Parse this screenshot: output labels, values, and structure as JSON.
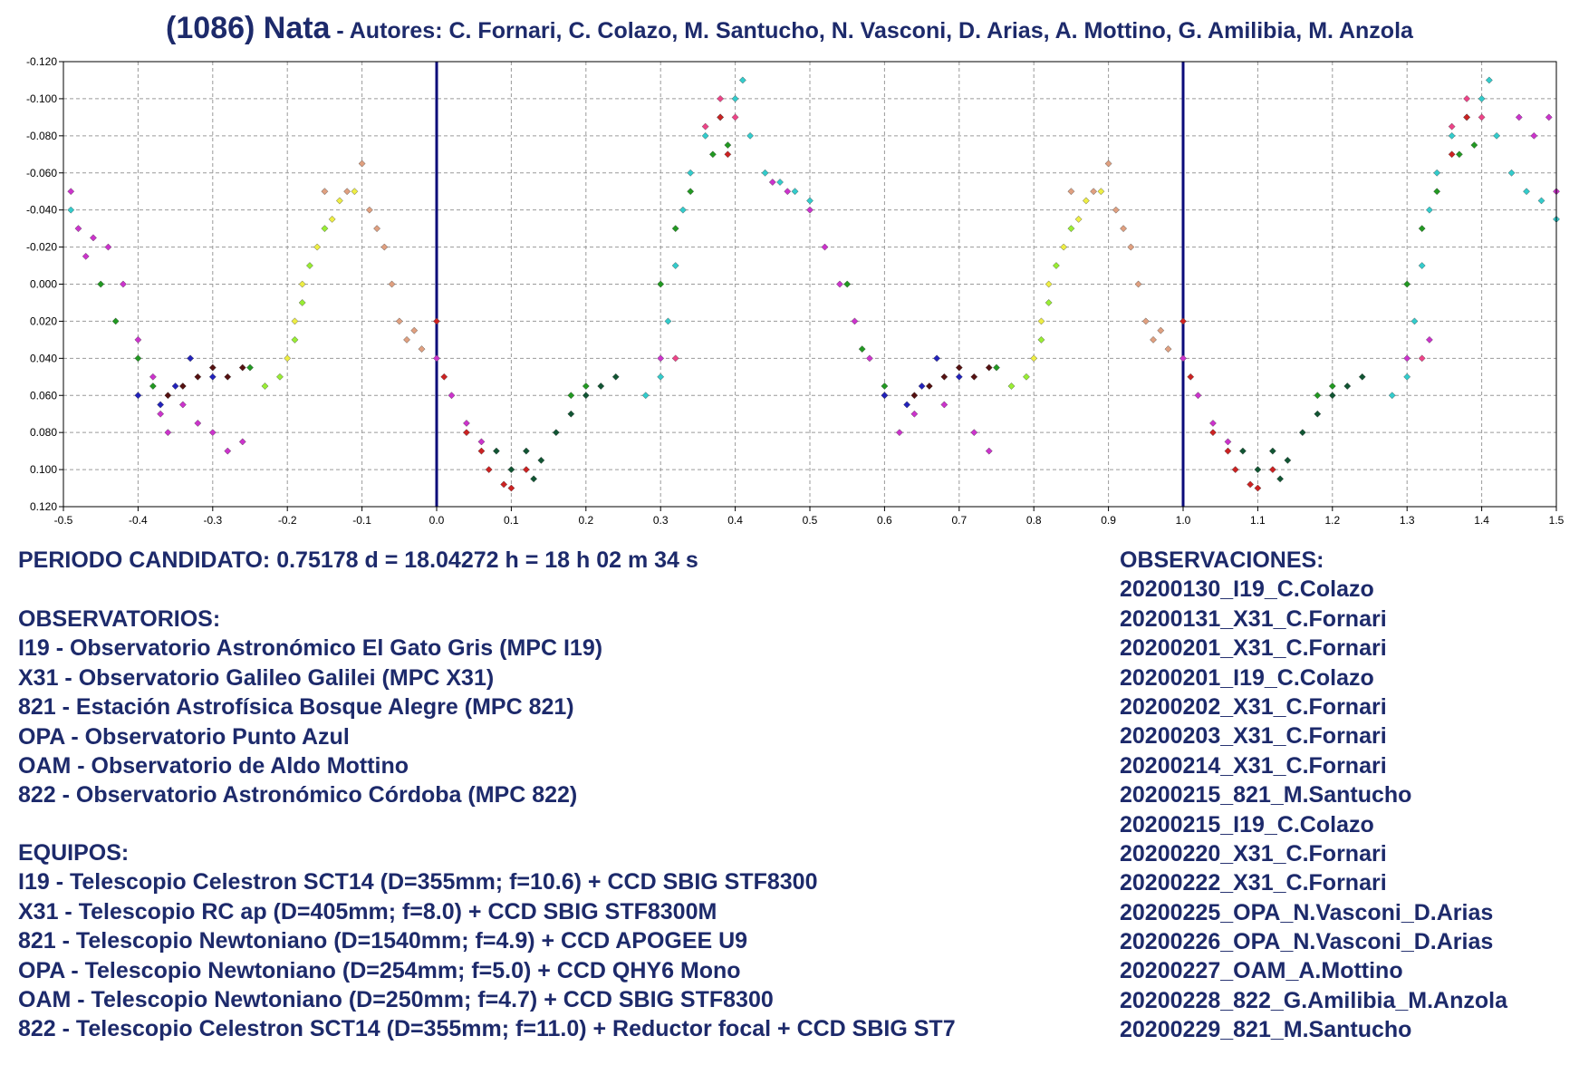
{
  "header": {
    "title": "(1086) Nata",
    "authors": " - Autores: C. Fornari, C. Colazo, M. Santucho, N. Vasconi, D. Arias, A. Mottino, G. Amilibia, M. Anzola"
  },
  "colors": {
    "title_text": "#1d2a6b",
    "zero_line": "#0b0b7a",
    "grid": "#9a9a9a"
  },
  "chart_data": {
    "type": "scatter",
    "title": "",
    "xlabel": "",
    "ylabel": "",
    "xlim": [
      -0.5,
      1.5
    ],
    "ylim": [
      -0.12,
      0.12
    ],
    "y_inverted": true,
    "grid": true,
    "x_ticks": [
      "-0.5",
      "-0.4",
      "-0.3",
      "-0.2",
      "-0.1",
      "0.0",
      "0.1",
      "0.2",
      "0.3",
      "0.4",
      "0.5",
      "0.6",
      "0.7",
      "0.8",
      "0.9",
      "1.0",
      "1.1",
      "1.2",
      "1.3",
      "1.4",
      "1.5"
    ],
    "y_ticks": [
      "-0.120",
      "-0.100",
      "-0.080",
      "-0.060",
      "-0.040",
      "-0.020",
      "0.000",
      "0.020",
      "0.040",
      "0.060",
      "0.080",
      "0.100",
      "0.120"
    ],
    "phase_markers": [
      0.0,
      1.0
    ],
    "series": [
      {
        "color": "#cc33cc",
        "points": [
          [
            -0.49,
            -0.05
          ],
          [
            -0.48,
            -0.03
          ],
          [
            -0.47,
            -0.015
          ],
          [
            -0.46,
            -0.025
          ],
          [
            -0.44,
            -0.02
          ],
          [
            -0.42,
            0.0
          ],
          [
            -0.4,
            0.03
          ],
          [
            -0.38,
            0.05
          ],
          [
            -0.37,
            0.07
          ],
          [
            -0.36,
            0.08
          ],
          [
            -0.34,
            0.065
          ],
          [
            -0.32,
            0.075
          ],
          [
            -0.3,
            0.08
          ],
          [
            -0.28,
            0.09
          ],
          [
            -0.26,
            0.085
          ],
          [
            0.0,
            0.04
          ],
          [
            0.02,
            0.06
          ],
          [
            0.04,
            0.075
          ],
          [
            0.06,
            0.085
          ],
          [
            0.3,
            0.04
          ],
          [
            0.45,
            -0.055
          ],
          [
            0.47,
            -0.05
          ],
          [
            0.5,
            -0.04
          ],
          [
            0.52,
            -0.02
          ],
          [
            0.54,
            0.0
          ],
          [
            0.56,
            0.02
          ],
          [
            0.58,
            0.04
          ],
          [
            0.6,
            0.06
          ],
          [
            0.62,
            0.08
          ],
          [
            0.64,
            0.07
          ],
          [
            0.68,
            0.065
          ],
          [
            0.72,
            0.08
          ],
          [
            0.74,
            0.09
          ],
          [
            1.0,
            0.04
          ],
          [
            1.02,
            0.06
          ],
          [
            1.04,
            0.075
          ],
          [
            1.06,
            0.085
          ],
          [
            1.3,
            0.04
          ],
          [
            1.33,
            0.03
          ],
          [
            1.45,
            -0.09
          ],
          [
            1.47,
            -0.08
          ],
          [
            1.5,
            -0.05
          ],
          [
            1.49,
            -0.09
          ]
        ]
      },
      {
        "color": "#33cccc",
        "points": [
          [
            -0.49,
            -0.04
          ],
          [
            0.28,
            0.06
          ],
          [
            0.3,
            0.05
          ],
          [
            0.31,
            0.02
          ],
          [
            0.32,
            -0.01
          ],
          [
            0.33,
            -0.04
          ],
          [
            0.34,
            -0.06
          ],
          [
            0.36,
            -0.08
          ],
          [
            0.38,
            -0.09
          ],
          [
            0.4,
            -0.1
          ],
          [
            0.41,
            -0.11
          ],
          [
            0.42,
            -0.08
          ],
          [
            0.44,
            -0.06
          ],
          [
            0.46,
            -0.055
          ],
          [
            0.48,
            -0.05
          ],
          [
            0.5,
            -0.045
          ],
          [
            1.28,
            0.06
          ],
          [
            1.3,
            0.05
          ],
          [
            1.31,
            0.02
          ],
          [
            1.32,
            -0.01
          ],
          [
            1.33,
            -0.04
          ],
          [
            1.34,
            -0.06
          ],
          [
            1.36,
            -0.08
          ],
          [
            1.38,
            -0.09
          ],
          [
            1.4,
            -0.1
          ],
          [
            1.41,
            -0.11
          ],
          [
            1.42,
            -0.08
          ],
          [
            1.44,
            -0.06
          ],
          [
            1.46,
            -0.05
          ],
          [
            1.48,
            -0.045
          ],
          [
            1.5,
            -0.035
          ]
        ]
      },
      {
        "color": "#229922",
        "points": [
          [
            -0.45,
            0.0
          ],
          [
            -0.43,
            0.02
          ],
          [
            -0.4,
            0.04
          ],
          [
            -0.38,
            0.055
          ],
          [
            -0.25,
            0.045
          ],
          [
            0.18,
            0.06
          ],
          [
            0.2,
            0.055
          ],
          [
            0.3,
            0.0
          ],
          [
            0.32,
            -0.03
          ],
          [
            0.34,
            -0.05
          ],
          [
            0.37,
            -0.07
          ],
          [
            0.39,
            -0.075
          ],
          [
            0.55,
            0.0
          ],
          [
            0.57,
            0.035
          ],
          [
            0.6,
            0.055
          ],
          [
            0.75,
            0.045
          ],
          [
            1.18,
            0.06
          ],
          [
            1.2,
            0.055
          ],
          [
            1.3,
            0.0
          ],
          [
            1.32,
            -0.03
          ],
          [
            1.34,
            -0.05
          ],
          [
            1.37,
            -0.07
          ],
          [
            1.39,
            -0.075
          ]
        ]
      },
      {
        "color": "#99ee33",
        "points": [
          [
            -0.23,
            0.055
          ],
          [
            -0.21,
            0.05
          ],
          [
            -0.19,
            0.03
          ],
          [
            -0.18,
            0.01
          ],
          [
            -0.17,
            -0.01
          ],
          [
            -0.15,
            -0.03
          ],
          [
            0.77,
            0.055
          ],
          [
            0.79,
            0.05
          ],
          [
            0.81,
            0.03
          ],
          [
            0.82,
            0.01
          ],
          [
            0.83,
            -0.01
          ],
          [
            0.85,
            -0.03
          ]
        ]
      },
      {
        "color": "#eeee44",
        "points": [
          [
            -0.2,
            0.04
          ],
          [
            -0.19,
            0.02
          ],
          [
            -0.18,
            0.0
          ],
          [
            -0.16,
            -0.02
          ],
          [
            -0.14,
            -0.035
          ],
          [
            -0.13,
            -0.045
          ],
          [
            -0.11,
            -0.05
          ],
          [
            0.8,
            0.04
          ],
          [
            0.81,
            0.02
          ],
          [
            0.82,
            0.0
          ],
          [
            0.84,
            -0.02
          ],
          [
            0.86,
            -0.035
          ],
          [
            0.87,
            -0.045
          ],
          [
            0.89,
            -0.05
          ]
        ]
      },
      {
        "color": "#e0a080",
        "points": [
          [
            -0.15,
            -0.05
          ],
          [
            -0.12,
            -0.05
          ],
          [
            -0.1,
            -0.065
          ],
          [
            -0.09,
            -0.04
          ],
          [
            -0.08,
            -0.03
          ],
          [
            -0.07,
            -0.02
          ],
          [
            -0.06,
            0.0
          ],
          [
            -0.05,
            0.02
          ],
          [
            -0.04,
            0.03
          ],
          [
            -0.03,
            0.025
          ],
          [
            -0.02,
            0.035
          ],
          [
            0.85,
            -0.05
          ],
          [
            0.88,
            -0.05
          ],
          [
            0.9,
            -0.065
          ],
          [
            0.91,
            -0.04
          ],
          [
            0.92,
            -0.03
          ],
          [
            0.93,
            -0.02
          ],
          [
            0.94,
            0.0
          ],
          [
            0.95,
            0.02
          ],
          [
            0.96,
            0.03
          ],
          [
            0.97,
            0.025
          ],
          [
            0.98,
            0.035
          ]
        ]
      },
      {
        "color": "#cc2222",
        "points": [
          [
            0.0,
            0.02
          ],
          [
            0.01,
            0.05
          ],
          [
            0.04,
            0.08
          ],
          [
            0.06,
            0.09
          ],
          [
            0.07,
            0.1
          ],
          [
            0.09,
            0.108
          ],
          [
            0.1,
            0.11
          ],
          [
            0.12,
            0.1
          ],
          [
            0.38,
            -0.09
          ],
          [
            0.39,
            -0.07
          ],
          [
            1.0,
            0.02
          ],
          [
            1.01,
            0.05
          ],
          [
            1.04,
            0.08
          ],
          [
            1.06,
            0.09
          ],
          [
            1.07,
            0.1
          ],
          [
            1.09,
            0.108
          ],
          [
            1.1,
            0.11
          ],
          [
            1.12,
            0.1
          ],
          [
            1.36,
            -0.07
          ],
          [
            1.38,
            -0.09
          ]
        ]
      },
      {
        "color": "#115533",
        "points": [
          [
            0.08,
            0.09
          ],
          [
            0.1,
            0.1
          ],
          [
            0.12,
            0.09
          ],
          [
            0.13,
            0.105
          ],
          [
            0.14,
            0.095
          ],
          [
            0.16,
            0.08
          ],
          [
            0.18,
            0.07
          ],
          [
            0.2,
            0.06
          ],
          [
            0.22,
            0.055
          ],
          [
            0.24,
            0.05
          ],
          [
            1.08,
            0.09
          ],
          [
            1.1,
            0.1
          ],
          [
            1.12,
            0.09
          ],
          [
            1.13,
            0.105
          ],
          [
            1.14,
            0.095
          ],
          [
            1.16,
            0.08
          ],
          [
            1.18,
            0.07
          ],
          [
            1.2,
            0.06
          ],
          [
            1.22,
            0.055
          ],
          [
            1.24,
            0.05
          ]
        ]
      },
      {
        "color": "#2222bb",
        "points": [
          [
            -0.4,
            0.06
          ],
          [
            -0.37,
            0.065
          ],
          [
            -0.35,
            0.055
          ],
          [
            -0.33,
            0.04
          ],
          [
            -0.3,
            0.05
          ],
          [
            0.6,
            0.06
          ],
          [
            0.63,
            0.065
          ],
          [
            0.65,
            0.055
          ],
          [
            0.67,
            0.04
          ],
          [
            0.7,
            0.05
          ]
        ]
      },
      {
        "color": "#551111",
        "points": [
          [
            -0.36,
            0.06
          ],
          [
            -0.34,
            0.055
          ],
          [
            -0.32,
            0.05
          ],
          [
            -0.3,
            0.045
          ],
          [
            -0.28,
            0.05
          ],
          [
            -0.26,
            0.045
          ],
          [
            0.64,
            0.06
          ],
          [
            0.66,
            0.055
          ],
          [
            0.68,
            0.05
          ],
          [
            0.7,
            0.045
          ],
          [
            0.72,
            0.05
          ],
          [
            0.74,
            0.045
          ]
        ]
      },
      {
        "color": "#ee4488",
        "points": [
          [
            0.32,
            0.04
          ],
          [
            0.36,
            -0.085
          ],
          [
            0.38,
            -0.1
          ],
          [
            0.4,
            -0.09
          ],
          [
            1.32,
            0.04
          ],
          [
            1.36,
            -0.085
          ],
          [
            1.38,
            -0.1
          ],
          [
            1.4,
            -0.09
          ]
        ]
      }
    ]
  },
  "info": {
    "period": "PERIODO CANDIDATO: 0.75178 d = 18.04272 h = 18 h 02 m 34 s",
    "observatorios_heading": "OBSERVATORIOS:",
    "observatorios": [
      "I19 - Observatorio Astronómico El Gato Gris (MPC I19)",
      "X31 - Observatorio Galileo Galilei (MPC X31)",
      "821 - Estación Astrofísica Bosque Alegre (MPC 821)",
      "OPA - Observatorio Punto Azul",
      "OAM - Observatorio de Aldo Mottino",
      "822 - Observatorio Astronómico Córdoba (MPC 822)"
    ],
    "equipos_heading": "EQUIPOS:",
    "equipos": [
      "I19 - Telescopio Celestron SCT14 (D=355mm; f=10.6) + CCD SBIG STF8300",
      "X31 - Telescopio RC ap (D=405mm; f=8.0) + CCD SBIG STF8300M",
      "821 - Telescopio Newtoniano (D=1540mm; f=4.9) + CCD APOGEE U9",
      "OPA - Telescopio Newtoniano (D=254mm; f=5.0) + CCD QHY6 Mono",
      "OAM - Telescopio Newtoniano (D=250mm; f=4.7) + CCD SBIG STF8300",
      "822 - Telescopio Celestron SCT14 (D=355mm; f=11.0) + Reductor focal + CCD SBIG ST7"
    ],
    "observaciones_heading": "OBSERVACIONES:",
    "observaciones": [
      "20200130_I19_C.Colazo",
      "20200131_X31_C.Fornari",
      "20200201_X31_C.Fornari",
      "20200201_I19_C.Colazo",
      "20200202_X31_C.Fornari",
      "20200203_X31_C.Fornari",
      "20200214_X31_C.Fornari",
      "20200215_821_M.Santucho",
      "20200215_I19_C.Colazo",
      "20200220_X31_C.Fornari",
      "20200222_X31_C.Fornari",
      "20200225_OPA_N.Vasconi_D.Arias",
      "20200226_OPA_N.Vasconi_D.Arias",
      "20200227_OAM_A.Mottino",
      "20200228_822_G.Amilibia_M.Anzola",
      "20200229_821_M.Santucho"
    ]
  }
}
